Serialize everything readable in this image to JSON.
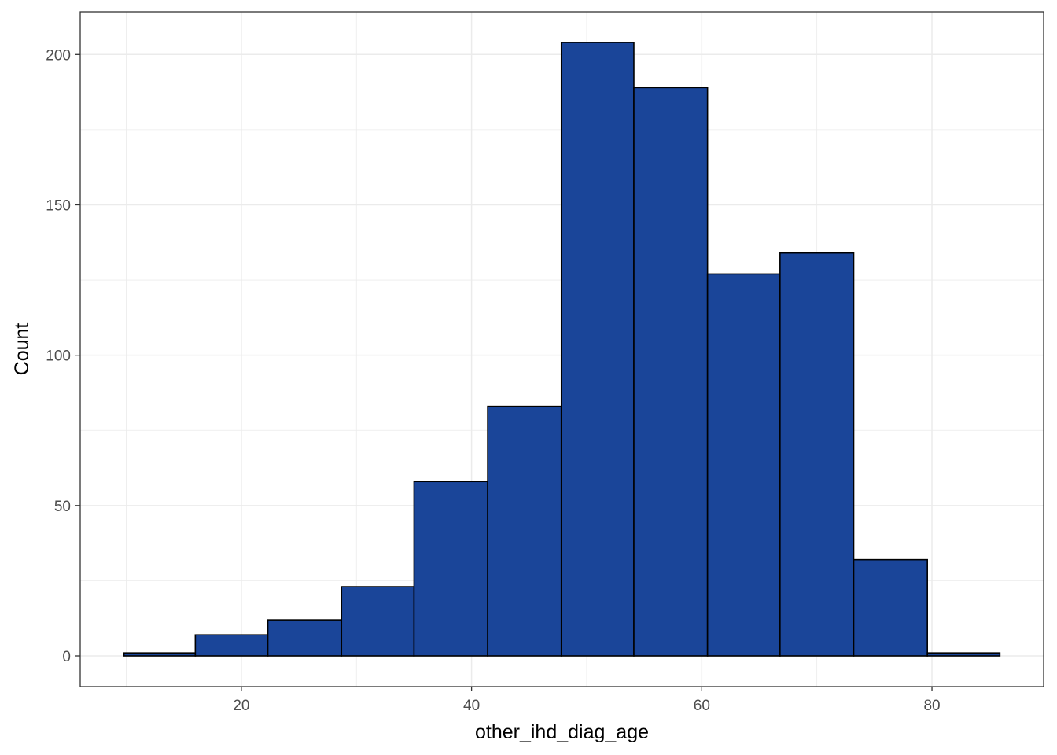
{
  "chart_data": {
    "type": "bar",
    "subtype": "histogram",
    "title": "",
    "xlabel": "other_ihd_diag_age",
    "ylabel": "Count",
    "bins": [
      {
        "x_start": 9.8,
        "x_end": 16.0,
        "count": 1
      },
      {
        "x_start": 16.0,
        "x_end": 22.3,
        "count": 7
      },
      {
        "x_start": 22.3,
        "x_end": 28.7,
        "count": 12
      },
      {
        "x_start": 28.7,
        "x_end": 35.0,
        "count": 23
      },
      {
        "x_start": 35.0,
        "x_end": 41.4,
        "count": 58
      },
      {
        "x_start": 41.4,
        "x_end": 47.8,
        "count": 83
      },
      {
        "x_start": 47.8,
        "x_end": 54.1,
        "count": 204
      },
      {
        "x_start": 54.1,
        "x_end": 60.5,
        "count": 189
      },
      {
        "x_start": 60.5,
        "x_end": 66.8,
        "count": 127
      },
      {
        "x_start": 66.8,
        "x_end": 73.2,
        "count": 134
      },
      {
        "x_start": 73.2,
        "x_end": 79.6,
        "count": 32
      },
      {
        "x_start": 79.6,
        "x_end": 85.9,
        "count": 1
      }
    ],
    "xlim": [
      6.0,
      89.7
    ],
    "ylim": [
      -10.2,
      214.2
    ],
    "x_ticks": [
      20,
      40,
      60,
      80
    ],
    "y_ticks": [
      0,
      50,
      100,
      150,
      200
    ],
    "grid": true,
    "theme": "bw",
    "colors": {
      "bar_fill": "#1a4599",
      "bar_stroke": "#000000",
      "grid": "#ebebeb",
      "panel_border": "#333333",
      "tick_text": "#4d4d4d",
      "title_text": "#000000"
    }
  }
}
